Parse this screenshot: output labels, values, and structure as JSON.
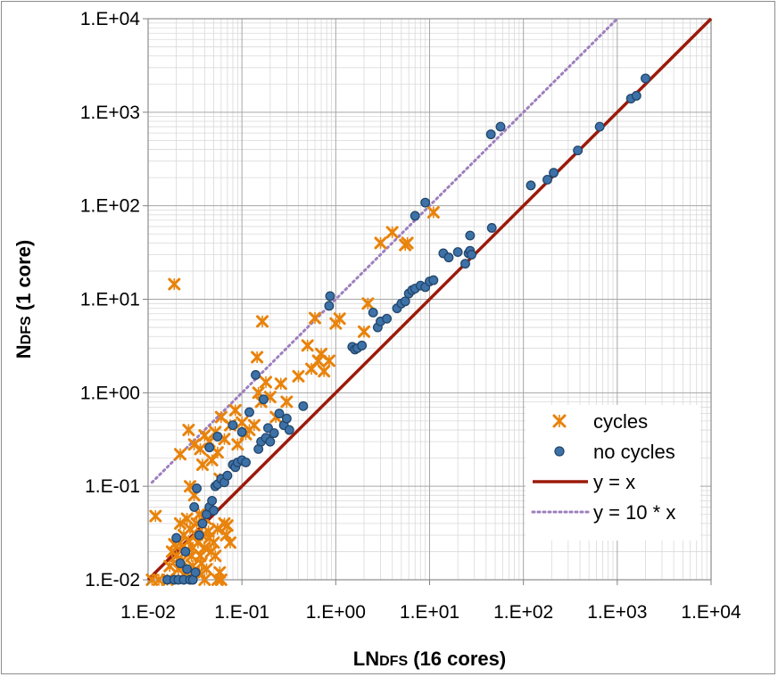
{
  "chart_data": {
    "type": "scatter",
    "x_scale": "log",
    "y_scale": "log",
    "xlim": [
      0.01,
      10000
    ],
    "ylim": [
      0.01,
      10000
    ],
    "grid": true,
    "legend_position": "bottom-right",
    "xlabel": {
      "main": "LN",
      "sub": "DFS",
      "rest": " (16 cores)"
    },
    "ylabel": {
      "main": "N",
      "sub": "DFS",
      "rest": " (1 core)"
    },
    "x_ticks": [
      "1.E-02",
      "1.E-01",
      "1.E+00",
      "1.E+01",
      "1.E+02",
      "1.E+03",
      "1.E+04"
    ],
    "y_ticks": [
      "1.E-02",
      "1.E-01",
      "1.E+00",
      "1.E+01",
      "1.E+02",
      "1.E+03",
      "1.E+04"
    ],
    "colors": {
      "cycles": "#e8830c",
      "no_cycles": "#3d72a8",
      "no_cycles_edge": "#23466b",
      "identity": "#9b1a0a",
      "ten_x": "#9d7fbe",
      "grid": "#d9d9d9"
    },
    "legend": [
      {
        "label": "cycles",
        "marker": "x"
      },
      {
        "label": "no cycles",
        "marker": "circle"
      },
      {
        "label": "y = x",
        "marker": "solid-line"
      },
      {
        "label": "y = 10 * x",
        "marker": "dotted-line"
      }
    ],
    "series": [
      {
        "name": "cycles",
        "marker": "x",
        "points": [
          [
            0.019,
            14.5
          ],
          [
            0.012,
            0.048
          ],
          [
            0.011,
            0.01
          ],
          [
            0.013,
            0.01
          ],
          [
            0.016,
            0.01
          ],
          [
            0.017,
            0.014
          ],
          [
            0.018,
            0.02
          ],
          [
            0.019,
            0.024
          ],
          [
            0.02,
            0.018
          ],
          [
            0.021,
            0.013
          ],
          [
            0.022,
            0.025
          ],
          [
            0.022,
            0.04
          ],
          [
            0.023,
            0.016
          ],
          [
            0.024,
            0.03
          ],
          [
            0.025,
            0.02
          ],
          [
            0.025,
            0.012
          ],
          [
            0.026,
            0.045
          ],
          [
            0.027,
            0.026
          ],
          [
            0.028,
            0.035
          ],
          [
            0.028,
            0.1
          ],
          [
            0.029,
            0.018
          ],
          [
            0.03,
            0.022
          ],
          [
            0.03,
            0.014
          ],
          [
            0.031,
            0.08
          ],
          [
            0.032,
            0.03
          ],
          [
            0.033,
            0.04
          ],
          [
            0.034,
            0.025
          ],
          [
            0.035,
            0.012
          ],
          [
            0.036,
            0.018
          ],
          [
            0.037,
            0.015
          ],
          [
            0.038,
            0.03
          ],
          [
            0.04,
            0.022
          ],
          [
            0.041,
            0.045
          ],
          [
            0.042,
            0.013
          ],
          [
            0.044,
            0.033
          ],
          [
            0.045,
            0.028
          ],
          [
            0.047,
            0.02
          ],
          [
            0.05,
            0.025
          ],
          [
            0.052,
            0.018
          ],
          [
            0.055,
            0.035
          ],
          [
            0.058,
            0.012
          ],
          [
            0.06,
            0.01
          ],
          [
            0.065,
            0.04
          ],
          [
            0.068,
            0.03
          ],
          [
            0.07,
            0.038
          ],
          [
            0.075,
            0.025
          ],
          [
            0.03,
            0.012
          ],
          [
            0.04,
            0.01
          ],
          [
            0.055,
            0.01
          ],
          [
            0.035,
            0.05
          ],
          [
            0.022,
            0.22
          ],
          [
            0.027,
            0.4
          ],
          [
            0.031,
            0.28
          ],
          [
            0.036,
            0.25
          ],
          [
            0.038,
            0.17
          ],
          [
            0.04,
            0.35
          ],
          [
            0.045,
            0.3
          ],
          [
            0.048,
            0.19
          ],
          [
            0.052,
            0.38
          ],
          [
            0.055,
            0.23
          ],
          [
            0.058,
            0.12
          ],
          [
            0.06,
            0.55
          ],
          [
            0.065,
            0.32
          ],
          [
            0.075,
            0.45
          ],
          [
            0.085,
            0.65
          ],
          [
            0.09,
            0.28
          ],
          [
            0.1,
            0.48
          ],
          [
            0.11,
            0.36
          ],
          [
            0.12,
            0.4
          ],
          [
            0.135,
            0.45
          ],
          [
            0.145,
            2.4
          ],
          [
            0.15,
            1.0
          ],
          [
            0.16,
            0.8
          ],
          [
            0.165,
            5.8
          ],
          [
            0.18,
            1.3
          ],
          [
            0.2,
            0.9
          ],
          [
            0.23,
            0.55
          ],
          [
            0.26,
            1.25
          ],
          [
            0.3,
            0.8
          ],
          [
            0.4,
            1.5
          ],
          [
            0.5,
            3.2
          ],
          [
            0.55,
            1.8
          ],
          [
            0.6,
            6.3
          ],
          [
            0.65,
            2.2
          ],
          [
            0.7,
            2.6
          ],
          [
            0.75,
            1.7
          ],
          [
            0.85,
            2.2
          ],
          [
            1.0,
            5.5
          ],
          [
            1.1,
            6.2
          ],
          [
            2.0,
            4.5
          ],
          [
            2.2,
            9.0
          ],
          [
            3.0,
            40.0
          ],
          [
            4.0,
            52.0
          ],
          [
            5.5,
            38.0
          ],
          [
            5.8,
            40.0
          ],
          [
            11.0,
            85.0
          ]
        ]
      },
      {
        "name": "no cycles",
        "marker": "circle",
        "points": [
          [
            0.016,
            0.01
          ],
          [
            0.019,
            0.01
          ],
          [
            0.021,
            0.01
          ],
          [
            0.024,
            0.01
          ],
          [
            0.028,
            0.01
          ],
          [
            0.03,
            0.01
          ],
          [
            0.025,
            0.02
          ],
          [
            0.026,
            0.013
          ],
          [
            0.031,
            0.06
          ],
          [
            0.033,
            0.095
          ],
          [
            0.035,
            0.03
          ],
          [
            0.038,
            0.04
          ],
          [
            0.042,
            0.05
          ],
          [
            0.045,
            0.06
          ],
          [
            0.048,
            0.07
          ],
          [
            0.05,
            0.055
          ],
          [
            0.052,
            0.1
          ],
          [
            0.055,
            0.105
          ],
          [
            0.06,
            0.12
          ],
          [
            0.065,
            0.11
          ],
          [
            0.07,
            0.13
          ],
          [
            0.08,
            0.17
          ],
          [
            0.085,
            0.16
          ],
          [
            0.09,
            0.18
          ],
          [
            0.1,
            0.19
          ],
          [
            0.11,
            0.18
          ],
          [
            0.02,
            0.028
          ],
          [
            0.022,
            0.015
          ],
          [
            0.032,
            0.012
          ],
          [
            0.045,
            0.26
          ],
          [
            0.055,
            0.34
          ],
          [
            0.08,
            0.45
          ],
          [
            0.1,
            0.38
          ],
          [
            0.12,
            0.62
          ],
          [
            0.14,
            1.55
          ],
          [
            0.15,
            0.25
          ],
          [
            0.16,
            0.3
          ],
          [
            0.17,
            0.85
          ],
          [
            0.18,
            0.33
          ],
          [
            0.19,
            0.42
          ],
          [
            0.2,
            0.3
          ],
          [
            0.22,
            0.37
          ],
          [
            0.25,
            0.6
          ],
          [
            0.28,
            0.45
          ],
          [
            0.3,
            0.53
          ],
          [
            0.32,
            0.4
          ],
          [
            0.45,
            0.72
          ],
          [
            0.85,
            8.5
          ],
          [
            0.87,
            10.8
          ],
          [
            1.5,
            3.1
          ],
          [
            1.6,
            2.9
          ],
          [
            1.7,
            3.0
          ],
          [
            1.9,
            3.2
          ],
          [
            2.5,
            7.2
          ],
          [
            2.8,
            5.0
          ],
          [
            3.0,
            5.8
          ],
          [
            3.5,
            6.2
          ],
          [
            4.5,
            8.0
          ],
          [
            5.0,
            9.0
          ],
          [
            5.5,
            9.5
          ],
          [
            6.0,
            11.5
          ],
          [
            6.5,
            12.5
          ],
          [
            7.0,
            13.0
          ],
          [
            8.0,
            14.0
          ],
          [
            9.0,
            13.5
          ],
          [
            10.0,
            15.5
          ],
          [
            11.0,
            16.0
          ],
          [
            7.0,
            78.0
          ],
          [
            9.0,
            108.0
          ],
          [
            14.0,
            31.0
          ],
          [
            16.0,
            28.0
          ],
          [
            20.0,
            32.0
          ],
          [
            24.0,
            24.0
          ],
          [
            26.0,
            31.0
          ],
          [
            27.0,
            33.0
          ],
          [
            27.0,
            48.0
          ],
          [
            28.0,
            30.0
          ],
          [
            46.0,
            58.0
          ],
          [
            45.0,
            580.0
          ],
          [
            57.0,
            700.0
          ],
          [
            120.0,
            165.0
          ],
          [
            180.0,
            190.0
          ],
          [
            210.0,
            225.0
          ],
          [
            380.0,
            390.0
          ],
          [
            650.0,
            700.0
          ],
          [
            1400.0,
            1400.0
          ],
          [
            1600.0,
            1500.0
          ],
          [
            2000.0,
            2300.0
          ]
        ]
      },
      {
        "name": "y = x",
        "marker": "solid-line",
        "points": [
          [
            0.01,
            0.01
          ],
          [
            10000,
            10000
          ]
        ]
      },
      {
        "name": "y = 10 * x",
        "marker": "dotted-line",
        "points": [
          [
            0.011,
            0.11
          ],
          [
            1000,
            10000
          ]
        ]
      }
    ]
  }
}
